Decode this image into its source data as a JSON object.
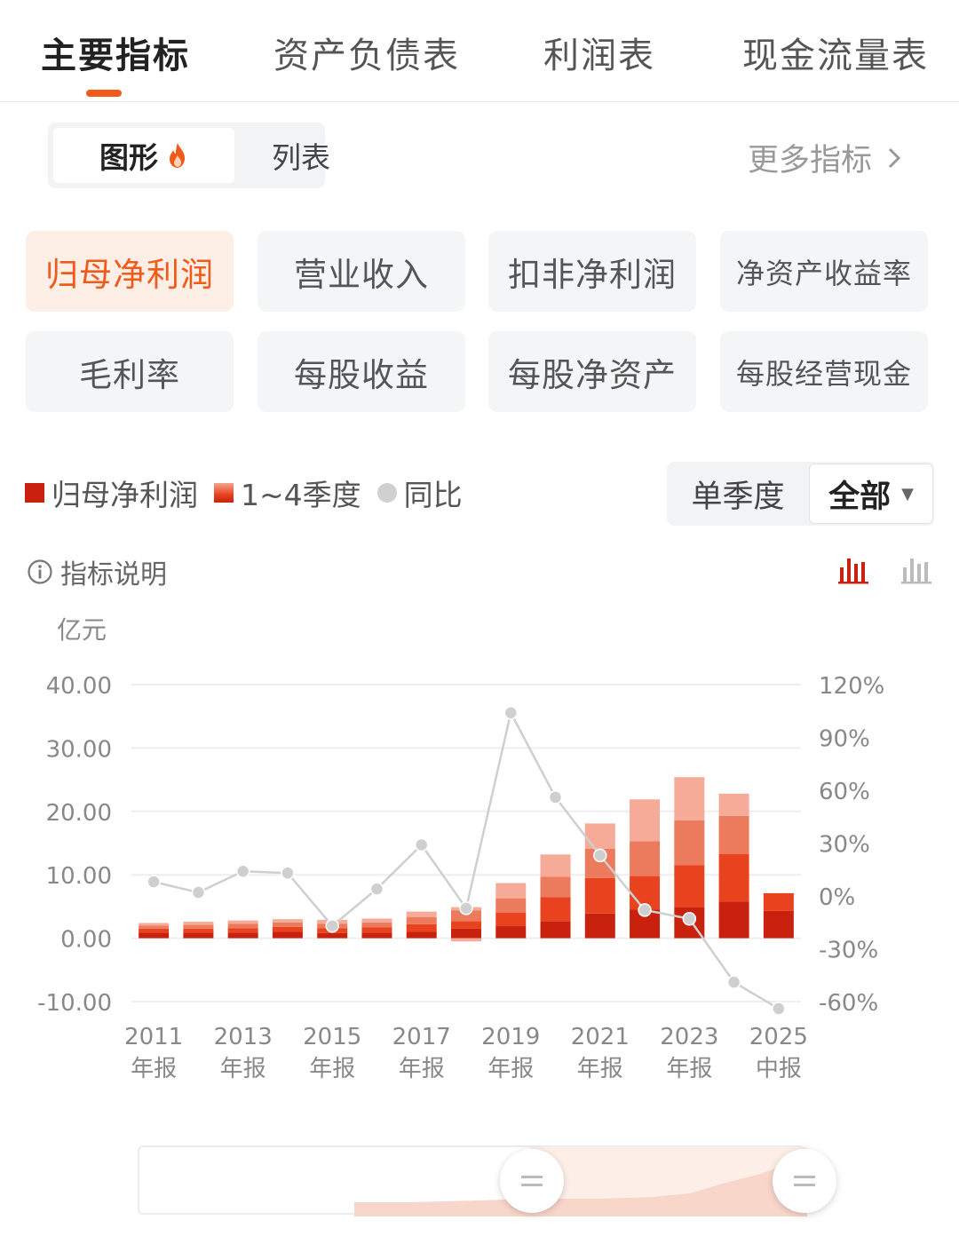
{
  "tabs": [
    {
      "label": "主要指标",
      "active": true
    },
    {
      "label": "资产负债表",
      "active": false
    },
    {
      "label": "利润表",
      "active": false
    },
    {
      "label": "现金流量表",
      "active": false
    }
  ],
  "view_toggle": {
    "graph": "图形",
    "list": "列表",
    "active": "graph",
    "graph_icon": "fire-icon"
  },
  "more_link": "更多指标",
  "metrics": [
    {
      "label": "归母净利润",
      "active": true
    },
    {
      "label": "营业收入",
      "active": false
    },
    {
      "label": "扣非净利润",
      "active": false
    },
    {
      "label": "净资产收益率",
      "active": false
    },
    {
      "label": "毛利率",
      "active": false
    },
    {
      "label": "每股收益",
      "active": false
    },
    {
      "label": "每股净资产",
      "active": false
    },
    {
      "label": "每股经营现金",
      "active": false
    }
  ],
  "legend": {
    "series1": "归母净利润",
    "series2": "1~4季度",
    "series3": "同比"
  },
  "period": {
    "single": "单季度",
    "all": "全部",
    "selected": "全部"
  },
  "explain": "指标说明",
  "unit": "亿元",
  "colors": {
    "accent": "#f05a1a",
    "q1": "#c8210e",
    "q2": "#e8421e",
    "q3": "#ec7a5c",
    "q4": "#f6ab98",
    "yoy": "#cfcfcf"
  },
  "chart_data": {
    "type": "bar",
    "stacked": true,
    "categories": [
      "2011年报",
      "2012年报",
      "2013年报",
      "2014年报",
      "2015年报",
      "2016年报",
      "2017年报",
      "2018年报",
      "2019年报",
      "2020年报",
      "2021年报",
      "2022年报",
      "2023年报",
      "2024年报",
      "2025中报"
    ],
    "x_tick_labels": [
      {
        "year": "2011",
        "kind": "年报"
      },
      {
        "year": "2013",
        "kind": "年报"
      },
      {
        "year": "2015",
        "kind": "年报"
      },
      {
        "year": "2017",
        "kind": "年报"
      },
      {
        "year": "2019",
        "kind": "年报"
      },
      {
        "year": "2021",
        "kind": "年报"
      },
      {
        "year": "2023",
        "kind": "年报"
      },
      {
        "year": "2025",
        "kind": "中报"
      }
    ],
    "series": [
      {
        "name": "Q1",
        "values": [
          0.9,
          0.9,
          0.9,
          1.0,
          0.8,
          0.9,
          1.0,
          1.5,
          1.9,
          2.7,
          3.9,
          4.5,
          4.9,
          5.8,
          4.3
        ]
      },
      {
        "name": "Q2",
        "values": [
          0.6,
          0.6,
          0.7,
          0.8,
          0.8,
          0.8,
          1.2,
          1.2,
          2.1,
          3.8,
          5.6,
          5.3,
          6.6,
          7.5,
          2.8
        ]
      },
      {
        "name": "Q3",
        "values": [
          0.5,
          0.6,
          0.7,
          0.7,
          0.7,
          0.8,
          1.1,
          1.7,
          2.3,
          3.2,
          4.6,
          5.5,
          7.1,
          6.0,
          0
        ]
      },
      {
        "name": "Q4",
        "values": [
          0.4,
          0.5,
          0.5,
          0.5,
          0.6,
          0.6,
          0.9,
          0.5,
          2.4,
          3.5,
          4.0,
          6.6,
          6.8,
          3.5,
          0
        ],
        "negatives": [
          0,
          0,
          0,
          0,
          0,
          0,
          0,
          -0.5,
          0,
          0,
          0,
          0,
          0,
          0,
          0
        ]
      }
    ],
    "yoy_percent": [
      8,
      2,
      14,
      13,
      -17,
      4,
      29,
      -7,
      104,
      56,
      23,
      -8,
      -13,
      -49,
      -64
    ],
    "y_left": {
      "ticks": [
        "40.00",
        "30.00",
        "20.00",
        "10.00",
        "0.00",
        "-10.00"
      ],
      "min": -10,
      "max": 40
    },
    "y_right": {
      "ticks": [
        "120%",
        "90%",
        "60%",
        "30%",
        "0%",
        "-30%",
        "-60%"
      ],
      "min": -60,
      "max": 120
    },
    "grid": true
  }
}
